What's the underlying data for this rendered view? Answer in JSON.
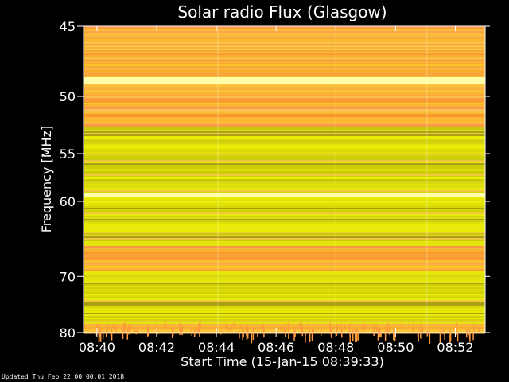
{
  "chart_data": {
    "type": "heatmap",
    "title": "Solar radio Flux (Glasgow)",
    "xlabel": "Start Time (15-Jan-15 08:39:33)",
    "ylabel": "Frequency [MHz]",
    "x_ticks": [
      "08:40",
      "08:42",
      "08:44",
      "08:46",
      "08:48",
      "08:50",
      "08:52"
    ],
    "x_tick_minutes": [
      40,
      42,
      44,
      46,
      48,
      50,
      52
    ],
    "xlim_minutes": [
      39.55,
      53.0
    ],
    "y_ticks": [
      45,
      50,
      55,
      60,
      70,
      80
    ],
    "ylim": [
      45,
      80
    ],
    "y_scale": "reciprocal",
    "colormap": "yellow-orange",
    "colors": {
      "background": "#000000",
      "yellow": "#d8d800",
      "orange": "#ff9933",
      "bright": "#ffffb0"
    },
    "bands": [
      {
        "from": 45,
        "to": 48.5,
        "level": "orange"
      },
      {
        "from": 48.5,
        "to": 49.0,
        "level": "bright"
      },
      {
        "from": 49.0,
        "to": 52.5,
        "level": "orange"
      },
      {
        "from": 52.5,
        "to": 59.0,
        "level": "yellow"
      },
      {
        "from": 59.0,
        "to": 59.4,
        "level": "bright"
      },
      {
        "from": 59.4,
        "to": 65.5,
        "level": "yellow"
      },
      {
        "from": 65.5,
        "to": 69.0,
        "level": "orange"
      },
      {
        "from": 69.0,
        "to": 78.0,
        "level": "yellow"
      },
      {
        "from": 78.0,
        "to": 80.0,
        "level": "orange"
      }
    ]
  },
  "footer": "Updated Thu Feb 22 00:00:01 2018"
}
